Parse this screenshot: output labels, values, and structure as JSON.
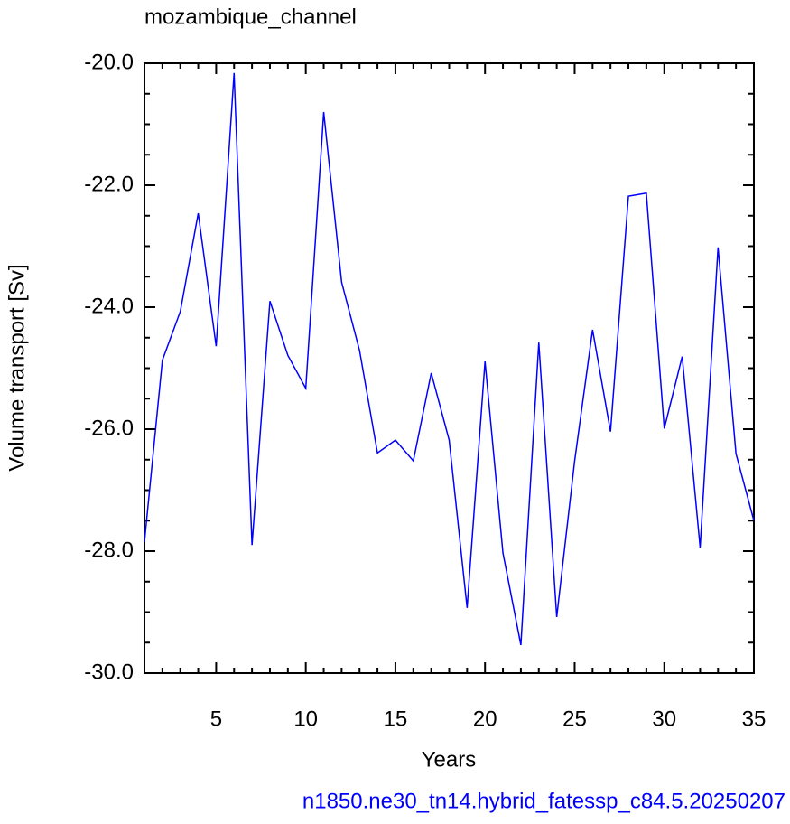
{
  "chart_data": {
    "type": "line",
    "title": "mozambique_channel",
    "xlabel": "Years",
    "ylabel": "Volume transport [Sv]",
    "footnote": "n1850.ne30_tn14.hybrid_fatessp_c84.5.20250207",
    "x": [
      1,
      2,
      3,
      4,
      5,
      6,
      7,
      8,
      9,
      10,
      11,
      12,
      13,
      14,
      15,
      16,
      17,
      18,
      19,
      20,
      21,
      22,
      23,
      24,
      25,
      26,
      27,
      28,
      29,
      30,
      31,
      32,
      33,
      34,
      35
    ],
    "series": [
      {
        "color": "#0000ff",
        "values": [
          -27.85,
          -24.87,
          -24.07,
          -22.46,
          -24.64,
          -20.16,
          -27.9,
          -23.9,
          -24.79,
          -25.33,
          -20.8,
          -23.59,
          -24.71,
          -26.39,
          -26.18,
          -26.52,
          -25.08,
          -26.18,
          -28.93,
          -24.89,
          -28.03,
          -29.54,
          -24.58,
          -29.08,
          -26.52,
          -24.37,
          -26.04,
          -22.18,
          -22.13,
          -25.99,
          -24.81,
          -27.94,
          -23.02,
          -26.4,
          -27.5
        ]
      }
    ],
    "xlim": [
      1,
      35
    ],
    "ylim": [
      -30,
      -20
    ],
    "xticks": [
      5,
      10,
      15,
      20,
      25,
      30,
      35
    ],
    "yticks": [
      {
        "value": -30,
        "label": "-30.0"
      },
      {
        "value": -28,
        "label": "-28.0"
      },
      {
        "value": -26,
        "label": "-26.0"
      },
      {
        "value": -24,
        "label": "-24.0"
      },
      {
        "value": -22,
        "label": "-22.0"
      },
      {
        "value": -20,
        "label": "-20.0"
      }
    ],
    "xminorticks": [
      1,
      2,
      3,
      4,
      6,
      7,
      8,
      9,
      11,
      12,
      13,
      14,
      16,
      17,
      18,
      19,
      21,
      22,
      23,
      24,
      26,
      27,
      28,
      29,
      31,
      32,
      33,
      34
    ],
    "yminorticks": [
      -29.5,
      -29,
      -28.5,
      -27.5,
      -27,
      -26.5,
      -25.5,
      -25,
      -24.5,
      -23.5,
      -23,
      -22.5,
      -21.5,
      -21,
      -20.5
    ]
  }
}
